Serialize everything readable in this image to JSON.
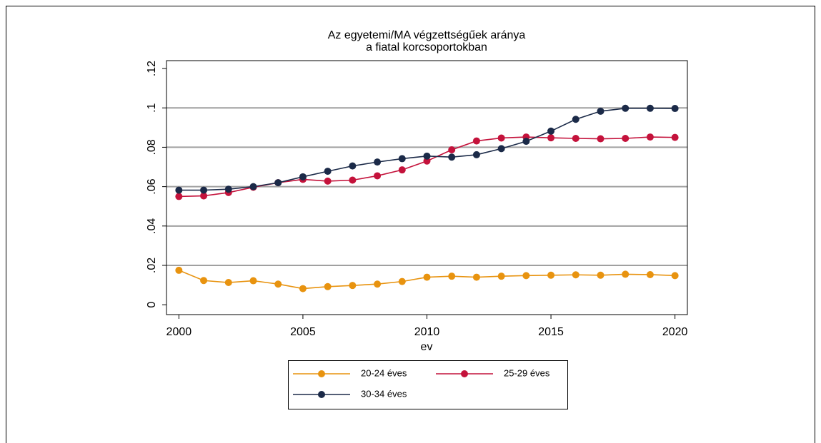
{
  "chart_data": {
    "type": "line",
    "title": [
      "Az  egyetemi/MA végzettségűek aránya",
      "a fiatal korcsoportokban"
    ],
    "xlabel": "ev",
    "x": [
      2000,
      2001,
      2002,
      2003,
      2004,
      2005,
      2006,
      2007,
      2008,
      2009,
      2010,
      2011,
      2012,
      2013,
      2014,
      2015,
      2016,
      2017,
      2018,
      2019,
      2020
    ],
    "series": [
      {
        "name": "20-24 éves",
        "color": "#e8930f",
        "values": [
          0.0175,
          0.0123,
          0.0113,
          0.0122,
          0.0105,
          0.0082,
          0.0092,
          0.0098,
          0.0105,
          0.0118,
          0.014,
          0.0145,
          0.014,
          0.0145,
          0.0148,
          0.015,
          0.0152,
          0.015,
          0.0155,
          0.0153,
          0.0148
        ]
      },
      {
        "name": "25-29 éves",
        "color": "#c4123b",
        "values": [
          0.055,
          0.0553,
          0.057,
          0.0597,
          0.062,
          0.0637,
          0.0628,
          0.0633,
          0.0655,
          0.0685,
          0.073,
          0.0787,
          0.0832,
          0.0847,
          0.0852,
          0.0848,
          0.0845,
          0.0843,
          0.0845,
          0.0852,
          0.085
        ]
      },
      {
        "name": "30-34 éves",
        "color": "#1b2a48",
        "values": [
          0.0582,
          0.0582,
          0.0587,
          0.06,
          0.062,
          0.065,
          0.0678,
          0.0705,
          0.0725,
          0.0742,
          0.0755,
          0.075,
          0.0762,
          0.0793,
          0.083,
          0.0882,
          0.0942,
          0.0983,
          0.0998,
          0.0998,
          0.0997
        ]
      }
    ],
    "xlim": [
      1999.5,
      2020.5
    ],
    "xticks": [
      2000,
      2005,
      2010,
      2015,
      2020
    ],
    "ylim": [
      -0.005,
      0.124
    ],
    "yticks": [
      0,
      {
        "value": 0.02,
        "label": ".02"
      },
      {
        "value": 0.04,
        "label": ".04"
      },
      {
        "value": 0.06,
        "label": ".06"
      },
      {
        "value": 0.08,
        "label": ".08"
      },
      {
        "value": 0.1,
        "label": ".1"
      },
      {
        "value": 0.12,
        "label": ".12"
      }
    ],
    "grid": true,
    "legend": "bottom"
  }
}
